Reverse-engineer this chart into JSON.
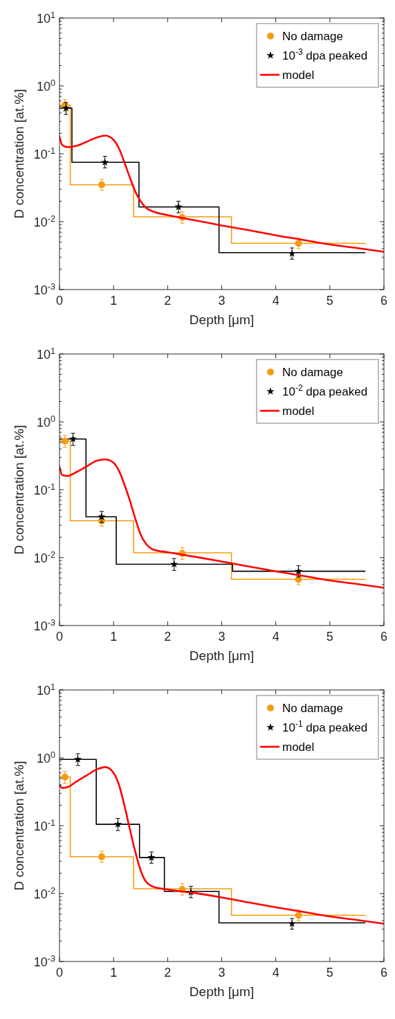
{
  "chart_data": [
    {
      "type": "line",
      "xlabel": "Depth [μm]",
      "ylabel": "D concentration [at.%]",
      "log": "y",
      "legend": "top right",
      "grid": false,
      "xlim": [
        0,
        6
      ],
      "xticks": [
        0,
        1,
        2,
        3,
        4,
        5,
        6
      ],
      "ylim": [
        0.001,
        10
      ],
      "yticks": [
        {
          "value": 0.001,
          "label": "10$^{-3}$"
        },
        {
          "value": 0.01,
          "label": "10$^{-2}$"
        },
        {
          "value": 0.1,
          "label": "10$^{-1}$"
        },
        {
          "value": 1,
          "label": "10$^{0}$"
        },
        {
          "value": 10,
          "label": "10$^{1}$"
        }
      ],
      "series": [
        {
          "type": "step",
          "color": "#f39c12",
          "marker": "none",
          "x": [
            0,
            0.2,
            1.37,
            3.18,
            5.65
          ],
          "values": [
            0.52,
            0.035,
            0.0118,
            0.0048,
            0.0048
          ]
        },
        {
          "type": "step",
          "color": "#000000",
          "marker": "none",
          "x": [
            0,
            0.23,
            1.47,
            2.95,
            5.65
          ],
          "values": [
            0.47,
            0.075,
            0.0165,
            0.0035,
            0.0035
          ]
        },
        {
          "type": "scatter",
          "name": "No damage",
          "color": "#f39c12",
          "marker": "circle",
          "x": [
            0.1,
            0.78,
            2.27,
            4.42
          ],
          "values": [
            0.52,
            0.035,
            0.0115,
            0.0048
          ],
          "errors": [
            [
              0.42,
              0.63
            ],
            [
              0.029,
              0.042
            ],
            [
              0.0095,
              0.014
            ],
            [
              0.004,
              0.0057
            ]
          ]
        },
        {
          "type": "scatter",
          "name": "10$^{-3}$ dpa peaked",
          "color": "#000000",
          "marker": "star",
          "x": [
            0.12,
            0.84,
            2.2,
            4.3
          ],
          "values": [
            0.47,
            0.075,
            0.0165,
            0.0034
          ],
          "errors": [
            [
              0.38,
              0.57
            ],
            [
              0.062,
              0.092
            ],
            [
              0.0135,
              0.02
            ],
            [
              0.0028,
              0.0041
            ]
          ]
        },
        {
          "type": "line",
          "name": "model",
          "color": "#ff0000",
          "marker": "none",
          "x": [
            0,
            0.05,
            0.15,
            0.3,
            0.5,
            0.7,
            0.85,
            1.0,
            1.1,
            1.2,
            1.3,
            1.4,
            1.5,
            1.6,
            1.75,
            2.0,
            2.5,
            3,
            3.5,
            4,
            4.5,
            5,
            5.5,
            6
          ],
          "values": [
            0.18,
            0.135,
            0.125,
            0.13,
            0.15,
            0.175,
            0.185,
            0.16,
            0.12,
            0.075,
            0.045,
            0.028,
            0.02,
            0.016,
            0.014,
            0.0125,
            0.0105,
            0.0088,
            0.0075,
            0.0063,
            0.0054,
            0.0046,
            0.0041,
            0.0036
          ]
        }
      ]
    },
    {
      "type": "line",
      "xlabel": "Depth [μm]",
      "ylabel": "D concentration [at.%]",
      "log": "y",
      "legend": "top right",
      "grid": false,
      "xlim": [
        0,
        6
      ],
      "xticks": [
        0,
        1,
        2,
        3,
        4,
        5,
        6
      ],
      "ylim": [
        0.001,
        10
      ],
      "yticks": [
        {
          "value": 0.001,
          "label": "10$^{-3}$"
        },
        {
          "value": 0.01,
          "label": "10$^{-2}$"
        },
        {
          "value": 0.1,
          "label": "10$^{-1}$"
        },
        {
          "value": 1,
          "label": "10$^{0}$"
        },
        {
          "value": 10,
          "label": "10$^{1}$"
        }
      ],
      "series": [
        {
          "type": "step",
          "color": "#f39c12",
          "marker": "none",
          "x": [
            0,
            0.2,
            1.37,
            3.18,
            5.65
          ],
          "values": [
            0.52,
            0.035,
            0.0118,
            0.0048,
            0.0048
          ]
        },
        {
          "type": "step",
          "color": "#000000",
          "marker": "none",
          "x": [
            0,
            0.49,
            1.05,
            3.2,
            5.65
          ],
          "values": [
            0.56,
            0.04,
            0.008,
            0.0063,
            0.0063
          ]
        },
        {
          "type": "scatter",
          "name": "No damage",
          "color": "#f39c12",
          "marker": "circle",
          "x": [
            0.1,
            0.78,
            2.27,
            4.42
          ],
          "values": [
            0.52,
            0.035,
            0.0115,
            0.0048
          ],
          "errors": [
            [
              0.42,
              0.63
            ],
            [
              0.029,
              0.042
            ],
            [
              0.0095,
              0.014
            ],
            [
              0.004,
              0.0057
            ]
          ]
        },
        {
          "type": "scatter",
          "name": "10$^{-2}$ dpa peaked",
          "color": "#000000",
          "marker": "star",
          "x": [
            0.25,
            0.78,
            2.12,
            4.42
          ],
          "values": [
            0.56,
            0.04,
            0.008,
            0.0063
          ],
          "errors": [
            [
              0.45,
              0.68
            ],
            [
              0.033,
              0.048
            ],
            [
              0.0065,
              0.0097
            ],
            [
              0.0052,
              0.0076
            ]
          ]
        },
        {
          "type": "line",
          "name": "model",
          "color": "#ff0000",
          "marker": "none",
          "x": [
            0,
            0.05,
            0.15,
            0.3,
            0.5,
            0.7,
            0.85,
            1.0,
            1.1,
            1.2,
            1.3,
            1.4,
            1.5,
            1.6,
            1.75,
            2.0,
            2.5,
            3,
            3.5,
            4,
            4.5,
            5,
            5.5,
            6
          ],
          "values": [
            0.22,
            0.165,
            0.16,
            0.18,
            0.22,
            0.27,
            0.28,
            0.25,
            0.19,
            0.12,
            0.07,
            0.038,
            0.022,
            0.016,
            0.013,
            0.012,
            0.0103,
            0.0088,
            0.0074,
            0.0063,
            0.0054,
            0.0046,
            0.0041,
            0.0036
          ]
        }
      ]
    },
    {
      "type": "line",
      "xlabel": "Depth [μm]",
      "ylabel": "D concentration [at.%]",
      "log": "y",
      "legend": "top right",
      "grid": false,
      "xlim": [
        0,
        6
      ],
      "xticks": [
        0,
        1,
        2,
        3,
        4,
        5,
        6
      ],
      "ylim": [
        0.001,
        10
      ],
      "yticks": [
        {
          "value": 0.001,
          "label": "10$^{-3}$"
        },
        {
          "value": 0.01,
          "label": "10$^{-2}$"
        },
        {
          "value": 0.1,
          "label": "10$^{-1}$"
        },
        {
          "value": 1,
          "label": "10$^{0}$"
        },
        {
          "value": 10,
          "label": "10$^{1}$"
        }
      ],
      "series": [
        {
          "type": "step",
          "color": "#f39c12",
          "marker": "none",
          "x": [
            0,
            0.2,
            1.37,
            3.18,
            5.65
          ],
          "values": [
            0.52,
            0.035,
            0.0118,
            0.0048,
            0.0048
          ]
        },
        {
          "type": "step",
          "color": "#000000",
          "marker": "none",
          "x": [
            0,
            0.68,
            1.48,
            1.94,
            2.95,
            5.65
          ],
          "values": [
            0.95,
            0.105,
            0.034,
            0.0108,
            0.0037,
            0.0037
          ]
        },
        {
          "type": "scatter",
          "name": "No damage",
          "color": "#f39c12",
          "marker": "circle",
          "x": [
            0.1,
            0.78,
            2.27,
            4.42
          ],
          "values": [
            0.52,
            0.035,
            0.0115,
            0.0048
          ],
          "errors": [
            [
              0.42,
              0.63
            ],
            [
              0.029,
              0.042
            ],
            [
              0.0095,
              0.014
            ],
            [
              0.004,
              0.0057
            ]
          ]
        },
        {
          "type": "scatter",
          "name": "10$^{-1}$ dpa peaked",
          "color": "#000000",
          "marker": "star",
          "x": [
            0.34,
            1.08,
            1.7,
            2.43,
            4.3
          ],
          "values": [
            0.95,
            0.105,
            0.034,
            0.0105,
            0.0036
          ],
          "errors": [
            [
              0.77,
              1.15
            ],
            [
              0.085,
              0.128
            ],
            [
              0.028,
              0.041
            ],
            [
              0.0087,
              0.0128
            ],
            [
              0.003,
              0.0043
            ]
          ]
        },
        {
          "type": "line",
          "name": "model",
          "color": "#ff0000",
          "marker": "none",
          "x": [
            0,
            0.05,
            0.15,
            0.3,
            0.5,
            0.7,
            0.85,
            1.0,
            1.1,
            1.2,
            1.3,
            1.4,
            1.5,
            1.6,
            1.75,
            2.0,
            2.5,
            3,
            3.5,
            4,
            4.5,
            5,
            5.5,
            6
          ],
          "values": [
            0.4,
            0.36,
            0.37,
            0.44,
            0.55,
            0.68,
            0.73,
            0.6,
            0.4,
            0.2,
            0.09,
            0.042,
            0.022,
            0.015,
            0.0125,
            0.0115,
            0.0102,
            0.0088,
            0.0074,
            0.0063,
            0.0054,
            0.0046,
            0.0041,
            0.0036
          ]
        }
      ]
    }
  ]
}
